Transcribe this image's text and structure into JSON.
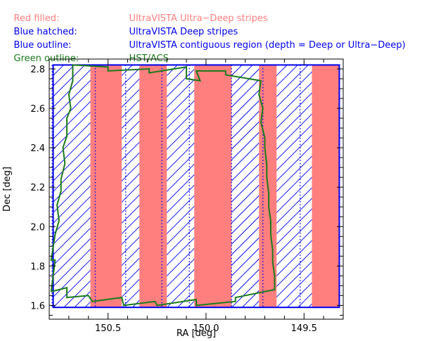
{
  "legend": [
    {
      "label": "Red filled:",
      "text": "UltraVISTA Ultra−Deep stripes",
      "color": "#ff7f7f"
    },
    {
      "label": "Blue hatched:",
      "text": "UltraVISTA Deep stripes",
      "color": "#0000ee"
    },
    {
      "label": "Blue outline:",
      "text": "UltraVISTA contiguous region (depth = Deep or Ultra−Deep)",
      "color": "#0000ee"
    },
    {
      "label": "Green outline:",
      "text": "HST/ACS",
      "color": "#1a7a1a"
    }
  ],
  "chart_data": {
    "type": "area",
    "xlabel": "RA [deg]",
    "ylabel": "Dec [deg]",
    "xlim": [
      150.8,
      149.3
    ],
    "ylim": [
      1.53,
      2.85
    ],
    "x_reversed": true,
    "xticks": [
      150.5,
      150.0,
      149.5
    ],
    "yticks": [
      1.6,
      1.8,
      2.0,
      2.2,
      2.4,
      2.6,
      2.8
    ],
    "colors": {
      "ultradeep": "#ff7f7f",
      "deep": "#0000ee",
      "acs": "#1a7a1a",
      "outline": "#0000ee"
    },
    "contiguous_region": {
      "ra": [
        150.78,
        149.32
      ],
      "dec": [
        1.59,
        2.82
      ]
    },
    "deep_stripes": [
      {
        "ra": [
          150.78,
          150.59
        ]
      },
      {
        "ra": [
          150.43,
          150.34
        ]
      },
      {
        "ra": [
          150.2,
          150.06
        ]
      },
      {
        "ra": [
          149.87,
          149.73
        ]
      },
      {
        "ra": [
          149.64,
          149.46
        ]
      }
    ],
    "ultradeep_stripes": [
      {
        "ra": [
          150.59,
          150.43
        ]
      },
      {
        "ra": [
          150.34,
          150.2
        ]
      },
      {
        "ra": [
          150.06,
          149.87
        ]
      },
      {
        "ra": [
          149.73,
          149.64
        ]
      },
      {
        "ra": [
          149.46,
          149.32
        ]
      }
    ],
    "tile_dividers_ra": [
      150.785,
      150.565,
      150.41,
      150.225,
      150.085,
      149.87,
      149.71,
      149.52
    ],
    "acs_outline": [
      [
        150.79,
        1.67
      ],
      [
        150.77,
        1.83
      ],
      [
        150.79,
        1.83
      ],
      [
        150.77,
        1.96
      ],
      [
        150.75,
        2.03
      ],
      [
        150.76,
        2.11
      ],
      [
        150.74,
        2.18
      ],
      [
        150.74,
        2.24
      ],
      [
        150.72,
        2.32
      ],
      [
        150.73,
        2.4
      ],
      [
        150.71,
        2.46
      ],
      [
        150.71,
        2.55
      ],
      [
        150.69,
        2.6
      ],
      [
        150.7,
        2.67
      ],
      [
        150.68,
        2.74
      ],
      [
        150.68,
        2.82
      ],
      [
        150.5,
        2.81
      ],
      [
        150.5,
        2.79
      ],
      [
        150.29,
        2.8
      ],
      [
        150.29,
        2.78
      ],
      [
        150.1,
        2.81
      ],
      [
        150.1,
        2.75
      ],
      [
        150.03,
        2.74
      ],
      [
        150.05,
        2.79
      ],
      [
        149.9,
        2.79
      ],
      [
        149.9,
        2.77
      ],
      [
        149.72,
        2.74
      ],
      [
        149.73,
        2.67
      ],
      [
        149.71,
        2.6
      ],
      [
        149.72,
        2.53
      ],
      [
        149.7,
        2.45
      ],
      [
        149.7,
        2.4
      ],
      [
        149.69,
        2.31
      ],
      [
        149.69,
        2.25
      ],
      [
        149.68,
        2.17
      ],
      [
        149.68,
        2.1
      ],
      [
        149.67,
        2.03
      ],
      [
        149.67,
        1.96
      ],
      [
        149.66,
        1.88
      ],
      [
        149.66,
        1.82
      ],
      [
        149.65,
        1.75
      ],
      [
        149.65,
        1.68
      ],
      [
        149.85,
        1.64
      ],
      [
        149.85,
        1.62
      ],
      [
        150.05,
        1.6
      ],
      [
        150.05,
        1.63
      ],
      [
        150.25,
        1.6
      ],
      [
        150.26,
        1.62
      ],
      [
        150.42,
        1.6
      ],
      [
        150.43,
        1.64
      ],
      [
        150.58,
        1.62
      ],
      [
        150.6,
        1.65
      ],
      [
        150.71,
        1.64
      ],
      [
        150.71,
        1.69
      ],
      [
        150.79,
        1.67
      ]
    ]
  }
}
